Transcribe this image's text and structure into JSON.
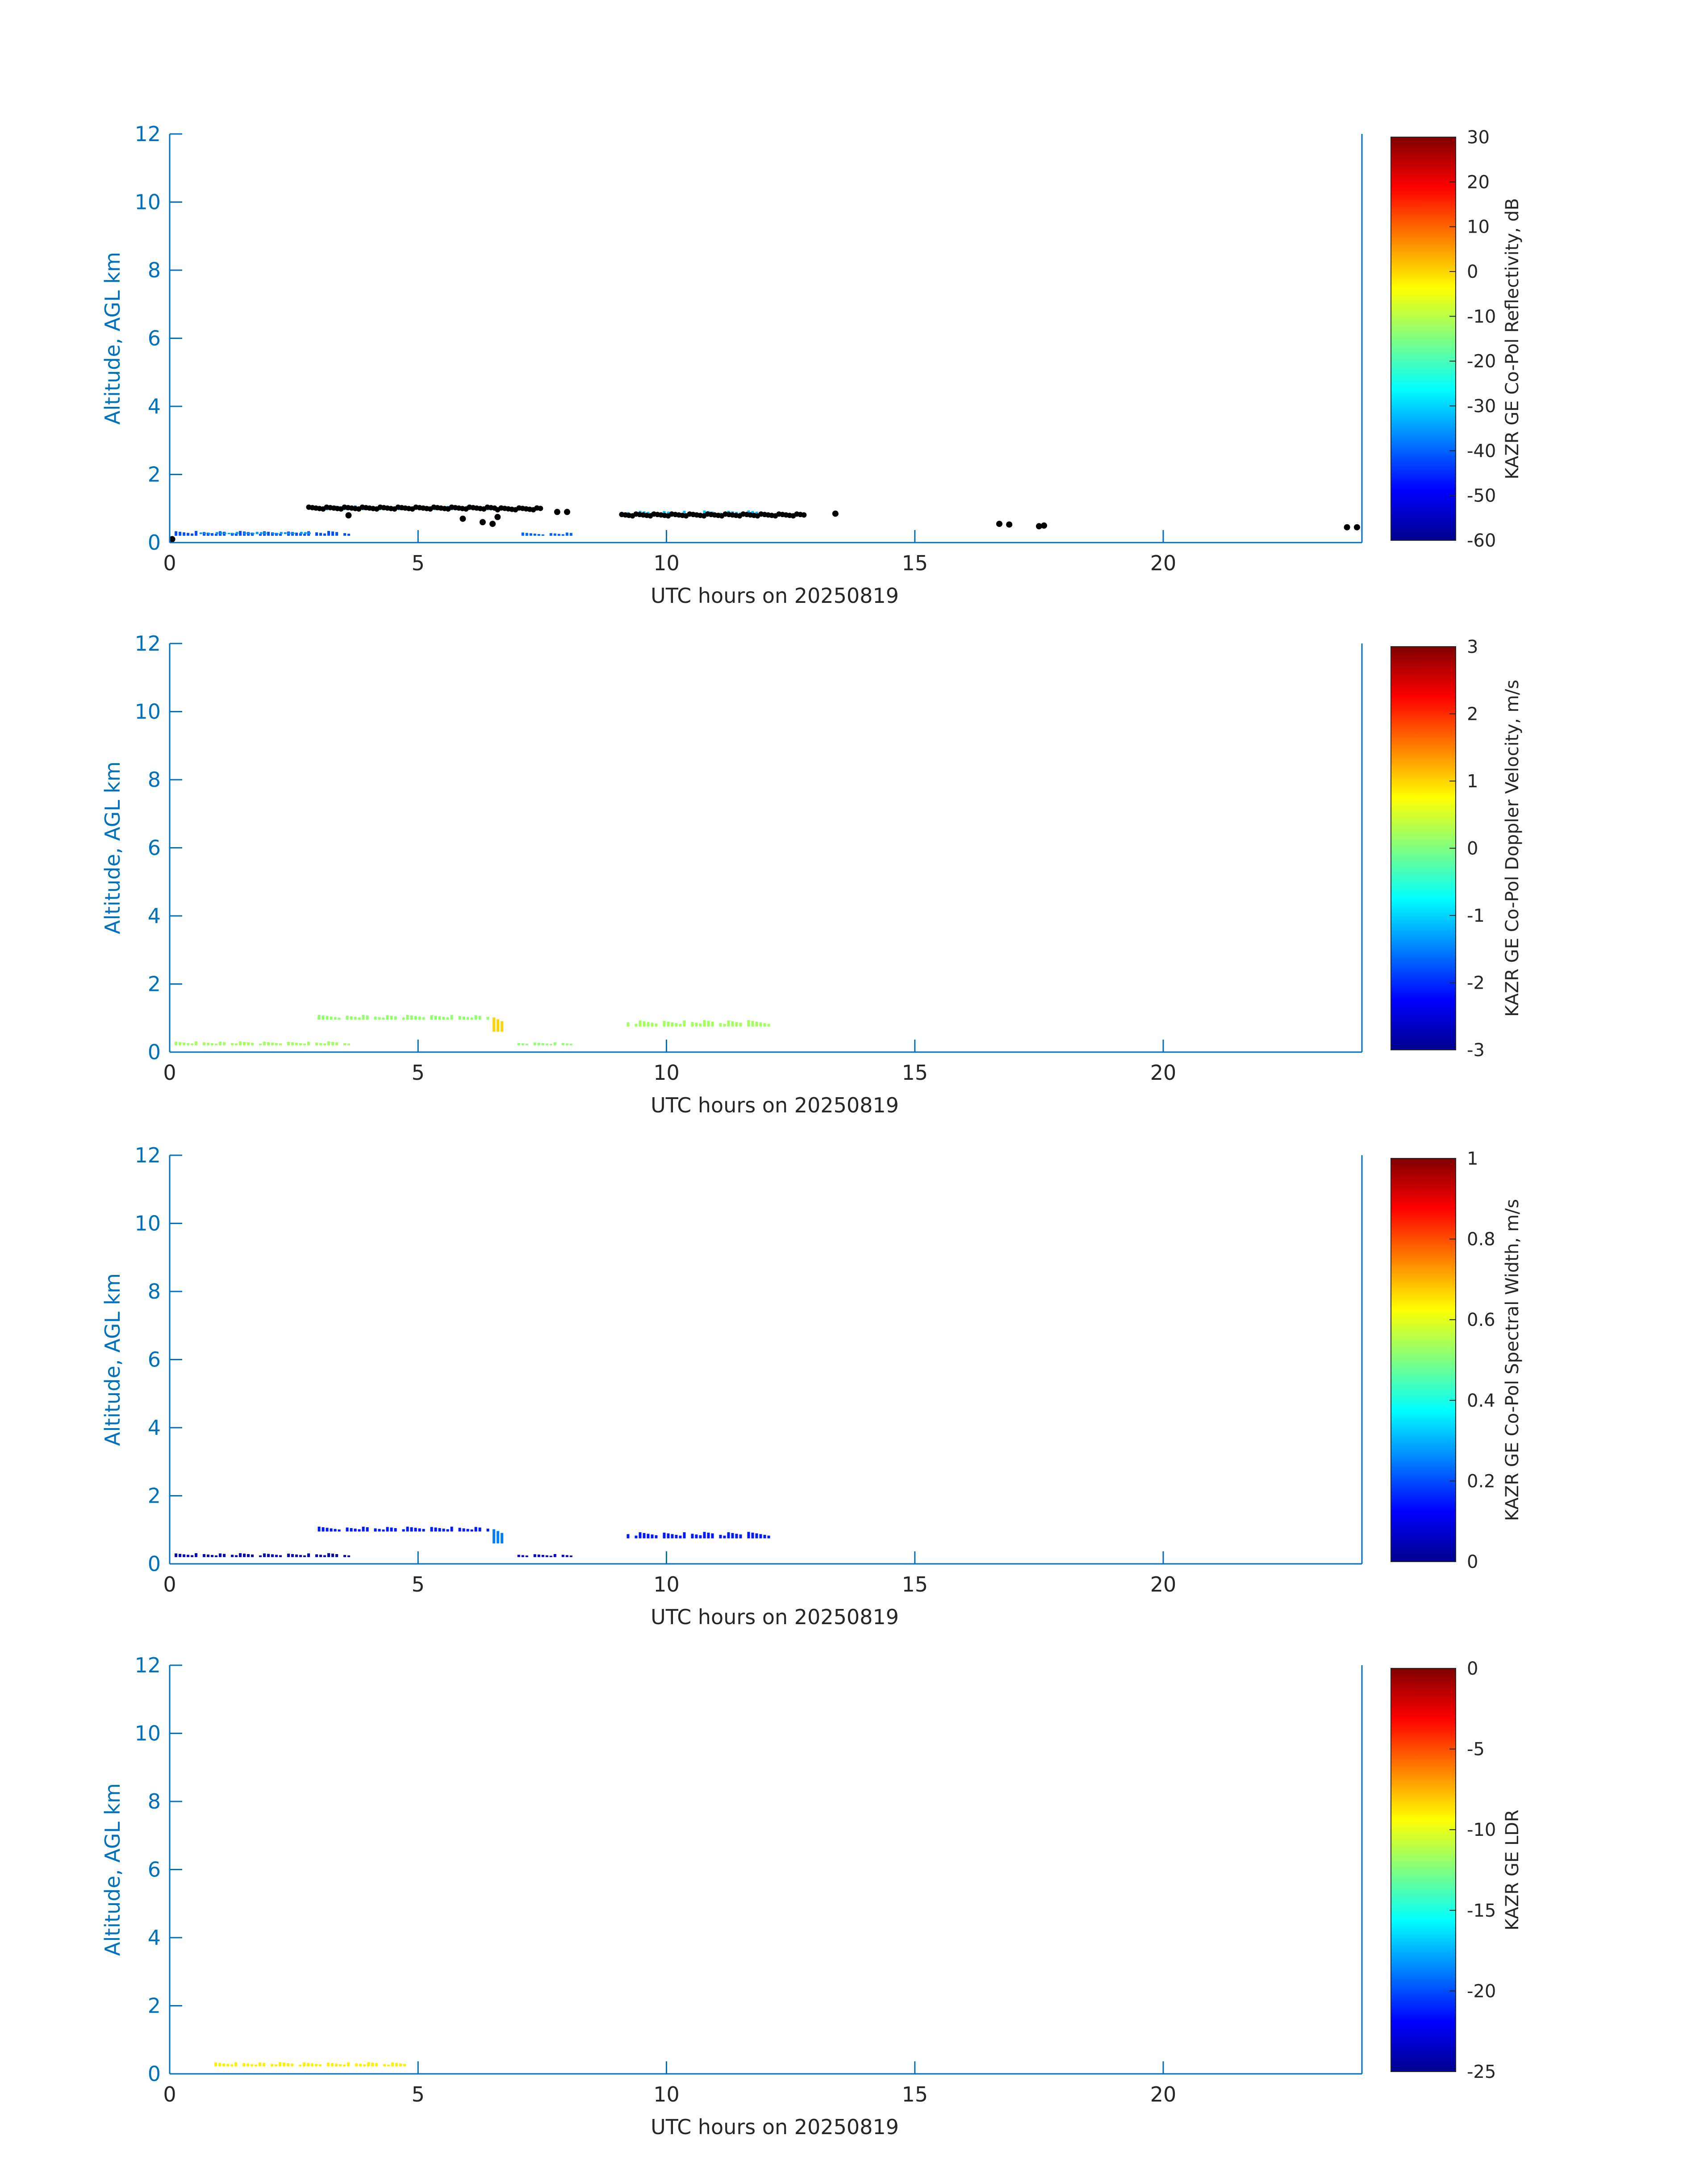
{
  "figure": {
    "xlabel": "UTC hours on 20250819",
    "ylabel": "Altitude, AGL km",
    "axis_color": "#0072bd",
    "colormap": "jet",
    "background": "#ffffff"
  },
  "chart_data": [
    {
      "type": "heatmap",
      "xlabel": "UTC hours on 20250819",
      "ylabel": "Altitude, AGL km",
      "xlim": [
        0,
        24
      ],
      "ylim": [
        0,
        12
      ],
      "xticks": [
        0,
        5,
        10,
        15,
        20
      ],
      "yticks": [
        0,
        2,
        4,
        6,
        8,
        10,
        12
      ],
      "colorbar": {
        "label": "KAZR GE Co-Pol Reflectivity, dB",
        "range": [
          -60,
          30
        ],
        "ticks": [
          -60,
          -50,
          -40,
          -30,
          -20,
          -10,
          0,
          10,
          20,
          30
        ]
      },
      "features": [
        {
          "x": [
            0.1,
            3.6
          ],
          "y": [
            0.2,
            0.35
          ],
          "value": -42
        },
        {
          "x": [
            0.6,
            2.8
          ],
          "y": [
            0.25,
            0.32
          ],
          "value": -35
        },
        {
          "x": [
            7,
            8.1
          ],
          "y": [
            0.2,
            0.3
          ],
          "value": -40
        },
        {
          "x": [
            2.9,
            6.4
          ],
          "y": [
            0.95,
            1.1
          ],
          "value": -34
        },
        {
          "x": [
            9.2,
            12
          ],
          "y": [
            0.8,
            0.95
          ],
          "value": -32
        }
      ],
      "markers": {
        "color": "#000000",
        "segments": [
          {
            "x": [
              2.8,
              6.6
            ],
            "y": 1.02
          },
          {
            "x": [
              6.6,
              7.5
            ],
            "y": 1.0
          },
          {
            "x": [
              9.1,
              12.8
            ],
            "y": 0.82
          }
        ],
        "points": [
          [
            3.6,
            0.8
          ],
          [
            5.9,
            0.7
          ],
          [
            6.3,
            0.6
          ],
          [
            6.5,
            0.55
          ],
          [
            6.6,
            0.75
          ],
          [
            7.8,
            0.9
          ],
          [
            8.0,
            0.9
          ],
          [
            13.4,
            0.85
          ],
          [
            16.7,
            0.55
          ],
          [
            16.9,
            0.53
          ],
          [
            17.5,
            0.48
          ],
          [
            17.6,
            0.5
          ],
          [
            23.7,
            0.45
          ],
          [
            23.9,
            0.45
          ],
          [
            0.05,
            0.1
          ]
        ]
      }
    },
    {
      "type": "heatmap",
      "xlabel": "UTC hours on 20250819",
      "ylabel": "Altitude, AGL km",
      "xlim": [
        0,
        24
      ],
      "ylim": [
        0,
        12
      ],
      "xticks": [
        0,
        5,
        10,
        15,
        20
      ],
      "yticks": [
        0,
        2,
        4,
        6,
        8,
        10,
        12
      ],
      "colorbar": {
        "label": "KAZR GE Co-Pol Doppler Velocity, m/s",
        "range": [
          -3,
          3
        ],
        "ticks": [
          -3,
          -2,
          -1,
          0,
          1,
          2,
          3
        ]
      },
      "features": [
        {
          "x": [
            0.1,
            3.6
          ],
          "y": [
            0.2,
            0.32
          ],
          "value": 0.2
        },
        {
          "x": [
            7,
            8.1
          ],
          "y": [
            0.2,
            0.3
          ],
          "value": 0.1
        },
        {
          "x": [
            2.9,
            6.4
          ],
          "y": [
            0.95,
            1.1
          ],
          "value": 0.1
        },
        {
          "x": [
            6.5,
            6.7
          ],
          "y": [
            0.6,
            1.1
          ],
          "value": 1.0
        },
        {
          "x": [
            9.2,
            12.1
          ],
          "y": [
            0.75,
            0.95
          ],
          "value": 0.2
        }
      ]
    },
    {
      "type": "heatmap",
      "xlabel": "UTC hours on 20250819",
      "ylabel": "Altitude, AGL km",
      "xlim": [
        0,
        24
      ],
      "ylim": [
        0,
        12
      ],
      "xticks": [
        0,
        5,
        10,
        15,
        20
      ],
      "yticks": [
        0,
        2,
        4,
        6,
        8,
        10,
        12
      ],
      "colorbar": {
        "label": "KAZR GE Co-Pol Spectral Width, m/s",
        "range": [
          0,
          1
        ],
        "ticks": [
          0,
          0.2,
          0.4,
          0.6,
          0.8,
          1
        ]
      },
      "features": [
        {
          "x": [
            0.1,
            3.6
          ],
          "y": [
            0.2,
            0.32
          ],
          "value": 0.05
        },
        {
          "x": [
            7,
            8.1
          ],
          "y": [
            0.2,
            0.3
          ],
          "value": 0.08
        },
        {
          "x": [
            2.9,
            6.4
          ],
          "y": [
            0.95,
            1.1
          ],
          "value": 0.15
        },
        {
          "x": [
            6.5,
            6.7
          ],
          "y": [
            0.6,
            1.1
          ],
          "value": 0.25
        },
        {
          "x": [
            9.2,
            12.1
          ],
          "y": [
            0.75,
            0.95
          ],
          "value": 0.15
        }
      ]
    },
    {
      "type": "heatmap",
      "xlabel": "UTC hours on 20250819",
      "ylabel": "Altitude, AGL km",
      "xlim": [
        0,
        24
      ],
      "ylim": [
        0,
        12
      ],
      "xticks": [
        0,
        5,
        10,
        15,
        20
      ],
      "yticks": [
        0,
        2,
        4,
        6,
        8,
        10,
        12
      ],
      "colorbar": {
        "label": "KAZR GE LDR",
        "range": [
          -25,
          0
        ],
        "ticks": [
          -25,
          -20,
          -15,
          -10,
          -5,
          0
        ]
      },
      "features": [
        {
          "x": [
            0.9,
            4.8
          ],
          "y": [
            0.22,
            0.35
          ],
          "value": -9
        }
      ]
    }
  ]
}
